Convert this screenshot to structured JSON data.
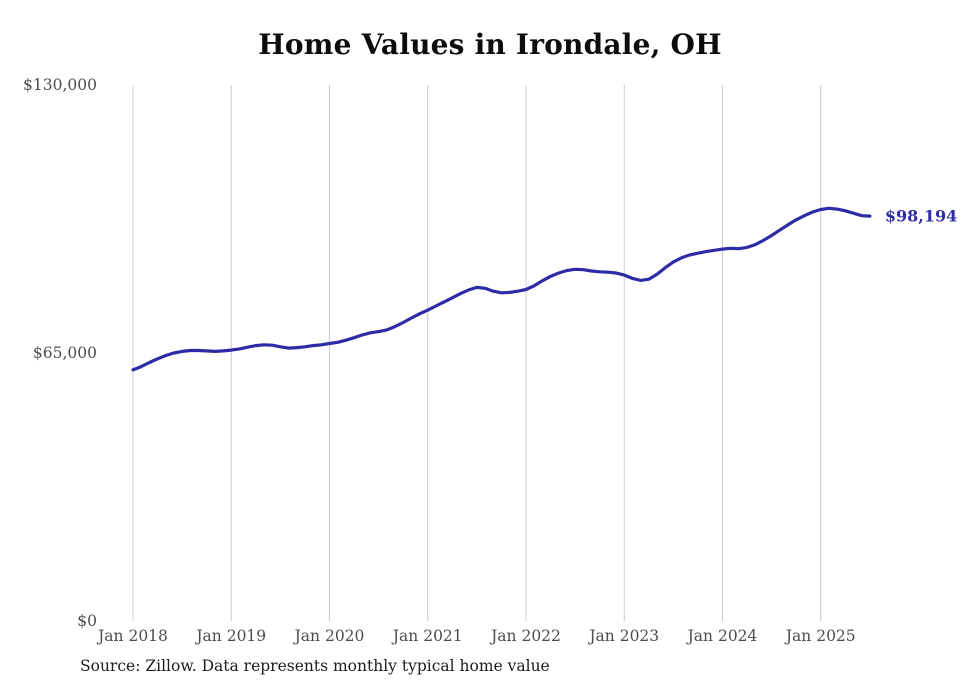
{
  "title": "Home Values in Irondale, OH",
  "source_note": "Source: Zillow. Data represents monthly typical home value",
  "colors": {
    "line": "#2e2ba6",
    "grid": "#cccccc",
    "tick_label": "#4d4d4d",
    "annotation": "#2e2ba6"
  },
  "chart_data": {
    "type": "line",
    "title": "Home Values in Irondale, OH",
    "series_name": "Monthly typical home value",
    "ylim": [
      0,
      130000
    ],
    "grid": "vertical-only",
    "legend": "none",
    "end_label": "$98,194",
    "end_value": 98194,
    "yticks": [
      {
        "value": 130000,
        "label": "$130,000"
      },
      {
        "value": 65000,
        "label": "$65,000"
      },
      {
        "value": 0,
        "label": "$0"
      }
    ],
    "xticks": [
      {
        "label": "Jan 2018"
      },
      {
        "label": "Jan 2019"
      },
      {
        "label": "Jan 2020"
      },
      {
        "label": "Jan 2021"
      },
      {
        "label": "Jan 2022"
      },
      {
        "label": "Jan 2023"
      },
      {
        "label": "Jan 2024"
      },
      {
        "label": "Jan 2025"
      }
    ],
    "x_start": "2018-01",
    "x_end": "2025-07",
    "x": [
      "2018-01",
      "2018-02",
      "2018-03",
      "2018-04",
      "2018-05",
      "2018-06",
      "2018-07",
      "2018-08",
      "2018-09",
      "2018-10",
      "2018-11",
      "2018-12",
      "2019-01",
      "2019-02",
      "2019-03",
      "2019-04",
      "2019-05",
      "2019-06",
      "2019-07",
      "2019-08",
      "2019-09",
      "2019-10",
      "2019-11",
      "2019-12",
      "2020-01",
      "2020-02",
      "2020-03",
      "2020-04",
      "2020-05",
      "2020-06",
      "2020-07",
      "2020-08",
      "2020-09",
      "2020-10",
      "2020-11",
      "2020-12",
      "2021-01",
      "2021-02",
      "2021-03",
      "2021-04",
      "2021-05",
      "2021-06",
      "2021-07",
      "2021-08",
      "2021-09",
      "2021-10",
      "2021-11",
      "2021-12",
      "2022-01",
      "2022-02",
      "2022-03",
      "2022-04",
      "2022-05",
      "2022-06",
      "2022-07",
      "2022-08",
      "2022-09",
      "2022-10",
      "2022-11",
      "2022-12",
      "2023-01",
      "2023-02",
      "2023-03",
      "2023-04",
      "2023-05",
      "2023-06",
      "2023-07",
      "2023-08",
      "2023-09",
      "2023-10",
      "2023-11",
      "2023-12",
      "2024-01",
      "2024-02",
      "2024-03",
      "2024-04",
      "2024-05",
      "2024-06",
      "2024-07",
      "2024-08",
      "2024-09",
      "2024-10",
      "2024-11",
      "2024-12",
      "2025-01",
      "2025-02",
      "2025-03",
      "2025-04",
      "2025-05",
      "2025-06",
      "2025-07"
    ],
    "values": [
      60900,
      61700,
      62700,
      63600,
      64400,
      65000,
      65400,
      65600,
      65600,
      65500,
      65400,
      65500,
      65700,
      66000,
      66400,
      66800,
      67000,
      66900,
      66500,
      66200,
      66300,
      66500,
      66800,
      67000,
      67300,
      67600,
      68100,
      68700,
      69400,
      69900,
      70200,
      70600,
      71400,
      72400,
      73500,
      74500,
      75400,
      76400,
      77400,
      78400,
      79400,
      80300,
      80900,
      80700,
      80000,
      79600,
      79700,
      80000,
      80400,
      81300,
      82500,
      83600,
      84400,
      85000,
      85300,
      85200,
      84900,
      84700,
      84600,
      84400,
      83900,
      83100,
      82600,
      82900,
      84100,
      85700,
      87100,
      88100,
      88800,
      89200,
      89600,
      89900,
      90200,
      90400,
      90300,
      90600,
      91300,
      92300,
      93500,
      94800,
      96100,
      97300,
      98300,
      99200,
      99800,
      100100,
      99900,
      99500,
      98900,
      98300,
      98194
    ]
  }
}
